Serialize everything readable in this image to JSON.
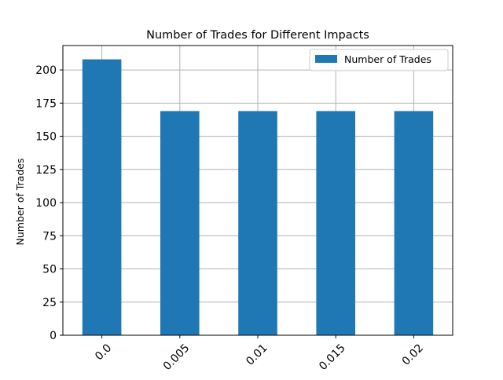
{
  "chart_data": {
    "type": "bar",
    "title": "Number of Trades for Different Impacts",
    "xlabel": "",
    "ylabel": "Number of Trades",
    "categories": [
      "0.0",
      "0.005",
      "0.01",
      "0.015",
      "0.02"
    ],
    "series": [
      {
        "name": "Number of Trades",
        "values": [
          208,
          169,
          169,
          169,
          169
        ],
        "color": "#1f77b4"
      }
    ],
    "ylim": [
      0,
      218.4
    ],
    "yticks": [
      0,
      25,
      50,
      75,
      100,
      125,
      150,
      175,
      200
    ],
    "grid": true,
    "legend_position": "top-right",
    "xtick_rotation": 45
  }
}
